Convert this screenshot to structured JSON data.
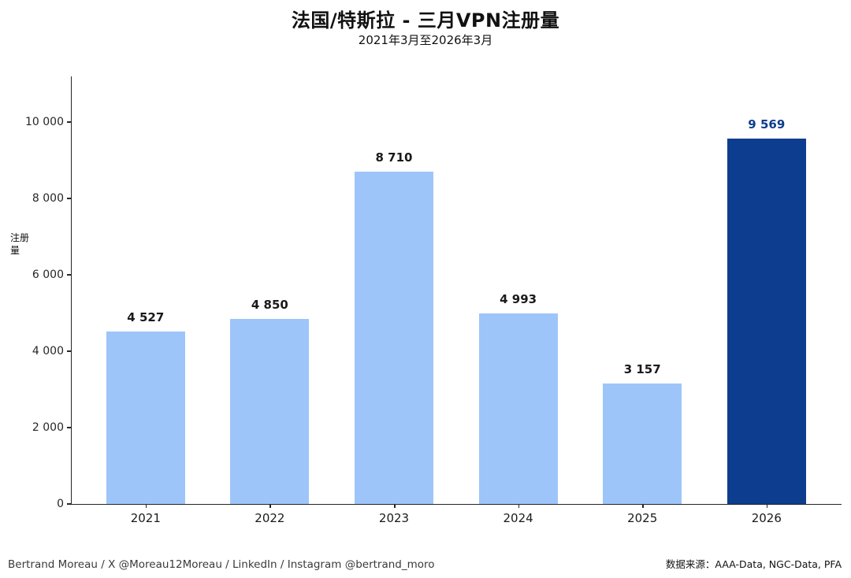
{
  "title": "法国/特斯拉 - 三月VPN注册量",
  "subtitle": "2021年3月至2026年3月",
  "footer": {
    "credits": "Bertrand Moreau / X @Moreau12Moreau / LinkedIn / Instagram @bertrand_moro",
    "source_label": "数据来源：",
    "source_value": "AAA-Data, NGC-Data, PFA"
  },
  "chart_data": {
    "type": "bar",
    "title": "法国/特斯拉 - 三月VPN注册量",
    "subtitle": "2021年3月至2026年3月",
    "ylabel": "注册量",
    "xlabel": "",
    "categories": [
      "2021",
      "2022",
      "2023",
      "2024",
      "2025",
      "2026"
    ],
    "values": [
      4527,
      4850,
      8710,
      4993,
      3157,
      9569
    ],
    "value_labels": [
      "4 527",
      "4 850",
      "8 710",
      "4 993",
      "3 157",
      "9 569"
    ],
    "yticks": [
      0,
      2000,
      4000,
      6000,
      8000,
      10000
    ],
    "ytick_labels": [
      "0",
      "2 000",
      "4 000",
      "6 000",
      "8 000",
      "10 000"
    ],
    "ylim": [
      0,
      11200
    ],
    "grid": false,
    "legend": null,
    "bar_color": "#9EC5FA",
    "highlight_color": "#0D3D8E",
    "highlight_index": 5
  }
}
